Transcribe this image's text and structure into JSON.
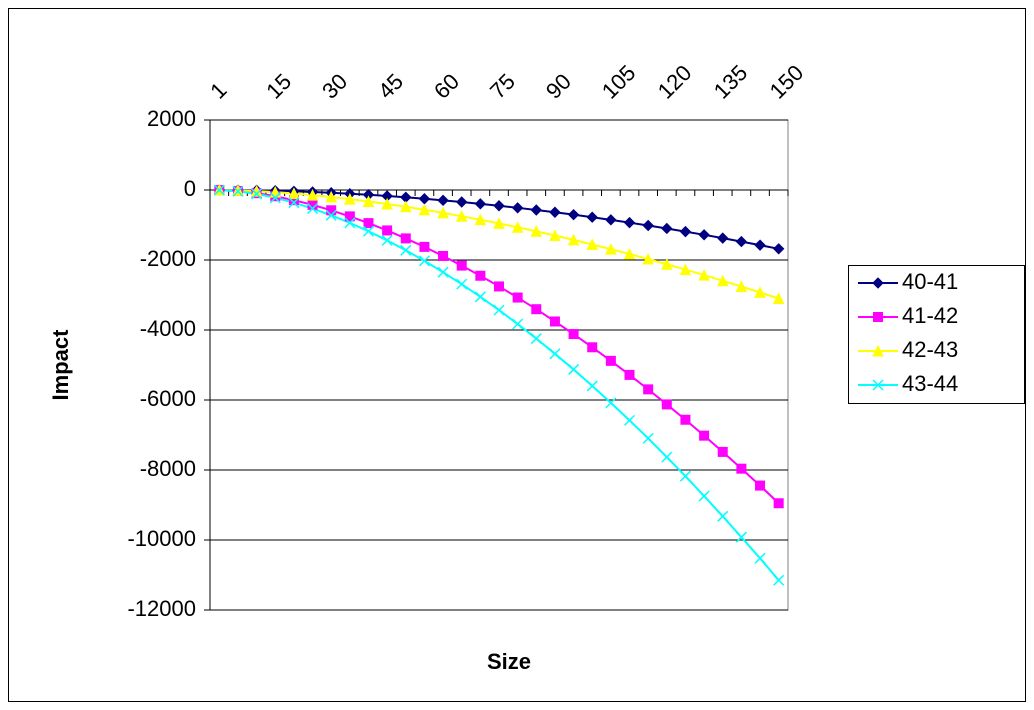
{
  "chart_data": {
    "type": "line",
    "x_label": "Size",
    "y_label": "Impact",
    "categories": [
      "1",
      null,
      null,
      "15",
      null,
      null,
      "30",
      null,
      null,
      "45",
      null,
      null,
      "60",
      null,
      null,
      "75",
      null,
      null,
      "90",
      null,
      null,
      "105",
      null,
      null,
      "120",
      null,
      null,
      "135",
      null,
      null,
      "150"
    ],
    "series": [
      {
        "name": "40-41",
        "color": "#000080",
        "marker": "diamond",
        "values": [
          0,
          -3,
          -10,
          -21,
          -37,
          -56,
          -79,
          -106,
          -136,
          -171,
          -208,
          -250,
          -295,
          -343,
          -395,
          -450,
          -509,
          -571,
          -636,
          -705,
          -778,
          -853,
          -932,
          -1014,
          -1099,
          -1189,
          -1280,
          -1375,
          -1474,
          -1576,
          -1680
        ]
      },
      {
        "name": "41-42",
        "color": "#FF00FF",
        "marker": "square",
        "values": [
          -2,
          -28,
          -90,
          -179,
          -291,
          -425,
          -580,
          -754,
          -946,
          -1155,
          -1383,
          -1625,
          -1885,
          -2160,
          -2450,
          -2755,
          -3073,
          -3406,
          -3757,
          -4115,
          -4494,
          -4882,
          -5283,
          -5696,
          -6126,
          -6564,
          -7019,
          -7483,
          -7962,
          -8445,
          -8950
        ]
      },
      {
        "name": "42-43",
        "color": "#FFFF00",
        "marker": "triangle",
        "values": [
          -1,
          -10,
          -31,
          -62,
          -101,
          -147,
          -201,
          -261,
          -328,
          -400,
          -479,
          -563,
          -653,
          -748,
          -848,
          -954,
          -1065,
          -1180,
          -1301,
          -1425,
          -1557,
          -1691,
          -1830,
          -1973,
          -2122,
          -2274,
          -2431,
          -2592,
          -2758,
          -2925,
          -3100
        ]
      },
      {
        "name": "43-44",
        "color": "#00FFFF",
        "marker": "x",
        "values": [
          -2,
          -35,
          -112,
          -223,
          -362,
          -530,
          -723,
          -939,
          -1179,
          -1439,
          -1723,
          -2025,
          -2348,
          -2690,
          -3052,
          -3432,
          -3829,
          -4244,
          -4681,
          -5127,
          -5598,
          -6082,
          -6582,
          -7096,
          -7632,
          -8177,
          -8745,
          -9323,
          -9919,
          -10521,
          -11150
        ]
      }
    ],
    "ylim": [
      -12000,
      2000
    ],
    "yticks": [
      -12000,
      -10000,
      -8000,
      -6000,
      -4000,
      -2000,
      0,
      2000
    ],
    "grid": true,
    "legend": "right"
  }
}
